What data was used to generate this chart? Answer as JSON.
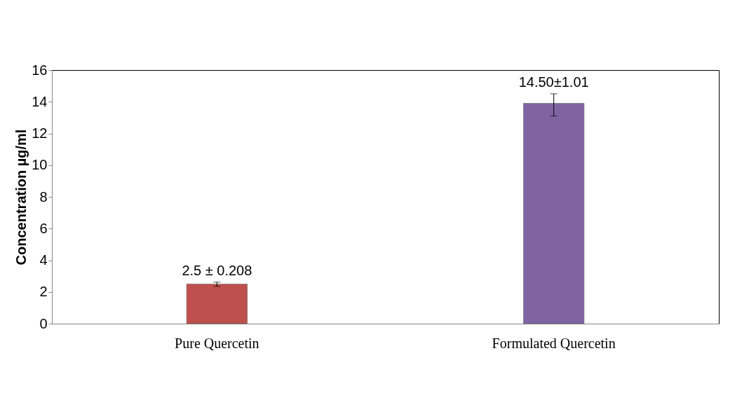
{
  "chart_data": {
    "type": "bar",
    "ylabel": "Concentration µg/ml",
    "categories": [
      "Pure Quercetin",
      "Formulated Quercetin"
    ],
    "values": [
      2.5,
      13.9
    ],
    "colors": [
      "#c0504d",
      "#8064a2"
    ],
    "errors": [
      [
        2.35,
        2.62
      ],
      [
        13.1,
        14.5
      ]
    ],
    "annotations": [
      {
        "text": "2.5 ± 0.208",
        "x": "Pure Quercetin",
        "y": 2.62
      },
      {
        "text": "14.50±1.01",
        "x": "Formulated Quercetin",
        "y": 14.5
      }
    ],
    "ylim": [
      0,
      16
    ],
    "yticks": [
      0,
      2,
      4,
      6,
      8,
      10,
      12,
      14,
      16
    ],
    "grid": false
  }
}
